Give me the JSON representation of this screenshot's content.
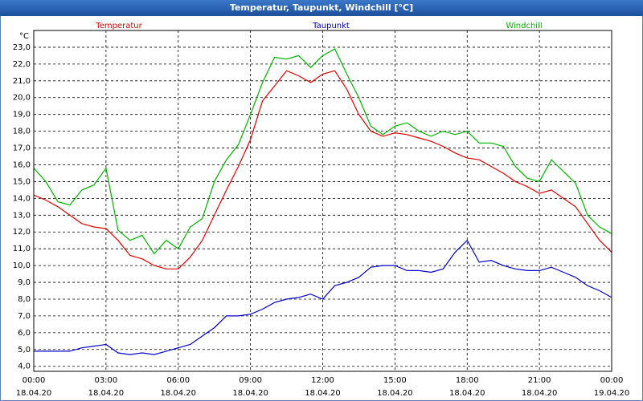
{
  "chart_data": {
    "type": "line",
    "title": "Temperatur, Taupunkt, Windchill [°C]",
    "y_unit": "°C",
    "x": [
      0,
      0.5,
      1,
      1.5,
      2,
      2.5,
      3,
      3.5,
      4,
      4.5,
      5,
      5.5,
      6,
      6.5,
      7,
      7.5,
      8,
      8.5,
      9,
      9.5,
      10,
      10.5,
      11,
      11.5,
      12,
      12.5,
      13,
      13.5,
      14,
      14.5,
      15,
      15.5,
      16,
      16.5,
      17,
      17.5,
      18,
      18.5,
      19,
      19.5,
      20,
      20.5,
      21,
      21.5,
      22,
      22.5,
      23,
      23.5,
      24
    ],
    "series": [
      {
        "name": "Temperatur",
        "color": "#e00000",
        "values": [
          14.2,
          13.9,
          13.5,
          13.0,
          12.5,
          12.3,
          12.2,
          11.5,
          10.6,
          10.4,
          10.0,
          9.8,
          9.8,
          10.5,
          11.5,
          13.0,
          14.5,
          15.9,
          17.5,
          19.8,
          20.7,
          21.6,
          21.3,
          20.9,
          21.4,
          21.6,
          20.5,
          19.0,
          18.0,
          17.7,
          17.9,
          17.8,
          17.6,
          17.4,
          17.1,
          16.7,
          16.4,
          16.3,
          15.9,
          15.5,
          15.0,
          14.7,
          14.3,
          14.5,
          14.0,
          13.5,
          12.5,
          11.5,
          10.8
        ]
      },
      {
        "name": "Taupunkt",
        "color": "#0000c8",
        "values": [
          4.9,
          4.9,
          4.9,
          4.9,
          5.1,
          5.2,
          5.3,
          4.8,
          4.7,
          4.8,
          4.7,
          4.9,
          5.1,
          5.3,
          5.8,
          6.3,
          7.0,
          7.0,
          7.1,
          7.4,
          7.8,
          8.0,
          8.1,
          8.3,
          8.0,
          8.8,
          9.0,
          9.3,
          9.9,
          10.0,
          10.0,
          9.7,
          9.7,
          9.6,
          9.8,
          10.8,
          11.5,
          10.2,
          10.3,
          10.0,
          9.8,
          9.7,
          9.7,
          9.9,
          9.6,
          9.3,
          8.8,
          8.5,
          8.1
        ]
      },
      {
        "name": "Windchill",
        "color": "#00b400",
        "values": [
          15.8,
          15.0,
          13.8,
          13.6,
          14.5,
          14.8,
          15.8,
          12.1,
          11.5,
          11.8,
          10.7,
          11.5,
          11.0,
          12.3,
          12.8,
          15.0,
          16.3,
          17.2,
          19.0,
          20.9,
          22.4,
          22.3,
          22.5,
          21.8,
          22.5,
          22.9,
          21.4,
          20.0,
          18.3,
          17.8,
          18.3,
          18.5,
          18.0,
          17.7,
          18.0,
          17.8,
          18.0,
          17.3,
          17.3,
          17.1,
          15.9,
          15.2,
          15.0,
          16.3,
          15.6,
          14.9,
          13.0,
          12.3,
          11.9
        ]
      }
    ],
    "xlim": [
      0,
      24
    ],
    "xticks": [
      {
        "value": 0,
        "label": [
          "00:00",
          "18.04.20"
        ]
      },
      {
        "value": 3,
        "label": [
          "03:00",
          "18.04.20"
        ]
      },
      {
        "value": 6,
        "label": [
          "06:00",
          "18.04.20"
        ]
      },
      {
        "value": 9,
        "label": [
          "09:00",
          "18.04.20"
        ]
      },
      {
        "value": 12,
        "label": [
          "12:00",
          "18.04.20"
        ]
      },
      {
        "value": 15,
        "label": [
          "15:00",
          "18.04.20"
        ]
      },
      {
        "value": 18,
        "label": [
          "18:00",
          "18.04.20"
        ]
      },
      {
        "value": 21,
        "label": [
          "21:00",
          "18.04.20"
        ]
      },
      {
        "value": 24,
        "label": [
          "00:00",
          "19.04.20"
        ]
      }
    ],
    "ylim": [
      3.7,
      24.0
    ],
    "yticks": [
      {
        "value": 4,
        "label": "4,0"
      },
      {
        "value": 5,
        "label": "5,0"
      },
      {
        "value": 6,
        "label": "6,0"
      },
      {
        "value": 7,
        "label": "7,0"
      },
      {
        "value": 8,
        "label": "8,0"
      },
      {
        "value": 9,
        "label": "9,0"
      },
      {
        "value": 10,
        "label": "10,0"
      },
      {
        "value": 11,
        "label": "11,0"
      },
      {
        "value": 12,
        "label": "12,0"
      },
      {
        "value": 13,
        "label": "13,0"
      },
      {
        "value": 14,
        "label": "14,0"
      },
      {
        "value": 15,
        "label": "15,0"
      },
      {
        "value": 16,
        "label": "16,0"
      },
      {
        "value": 17,
        "label": "17,0"
      },
      {
        "value": 18,
        "label": "18,0"
      },
      {
        "value": 19,
        "label": "19,0"
      },
      {
        "value": 20,
        "label": "20,0"
      },
      {
        "value": 21,
        "label": "21,0"
      },
      {
        "value": 22,
        "label": "22,0"
      },
      {
        "value": 23,
        "label": "23,0"
      }
    ],
    "grid": true
  }
}
